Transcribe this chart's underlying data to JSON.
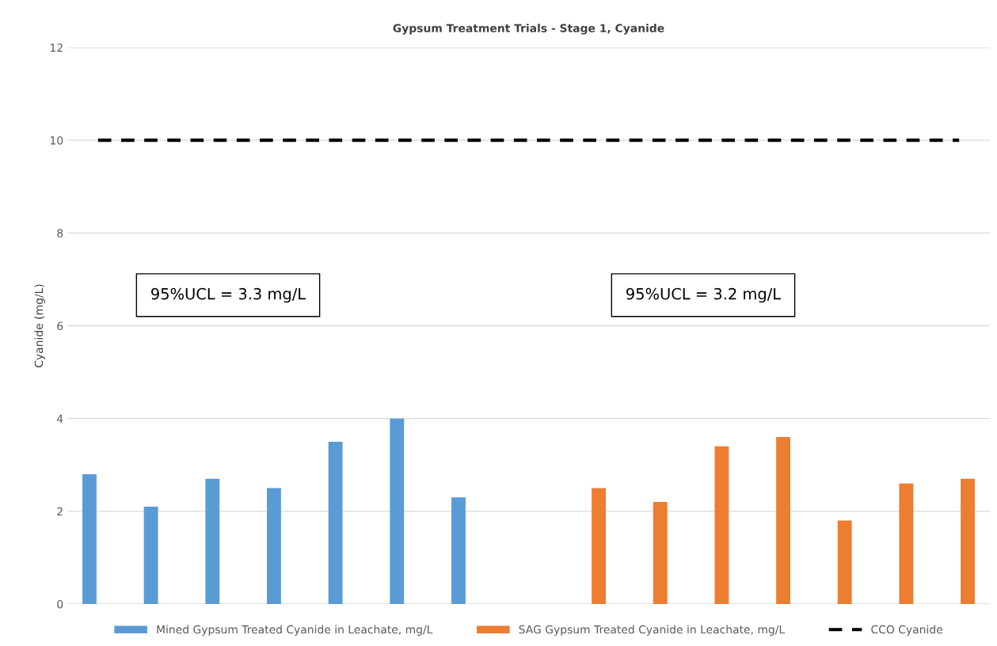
{
  "chart_data": {
    "type": "bar",
    "title": "Gypsum Treatment Trials - Stage 1, Cyanide",
    "ylabel": "Cyanide (mg/L)",
    "categories": [
      null,
      null,
      null,
      null,
      null,
      null,
      null,
      null,
      null,
      null,
      null,
      null,
      null,
      null,
      null
    ],
    "series": [
      {
        "name": "Mined Gypsum Treated Cyanide in Leachate, mg/L",
        "color": "#5b9bd5",
        "values": [
          2.8,
          2.1,
          2.7,
          2.5,
          3.5,
          4.0,
          2.3,
          null,
          null,
          null,
          null,
          null,
          null,
          null,
          null
        ]
      },
      {
        "name": "SAG Gypsum Treated Cyanide in Leachate, mg/L",
        "color": "#ed7d31",
        "values": [
          null,
          null,
          null,
          null,
          null,
          null,
          null,
          null,
          2.5,
          2.2,
          3.4,
          3.6,
          1.8,
          2.6,
          2.7
        ]
      },
      {
        "name": "CCO Cyanide",
        "type": "line",
        "color": "#000000",
        "line_style": "dashed",
        "marker": "none",
        "values": [
          10,
          10,
          10,
          10,
          10,
          10,
          10,
          10,
          10,
          10,
          10,
          10,
          10,
          10,
          10
        ]
      }
    ],
    "ylim": [
      0,
      12
    ],
    "yticks": [
      0,
      2,
      4,
      6,
      8,
      10,
      12
    ],
    "grid": "y",
    "legend": "bottom",
    "annotations": [
      "95%UCL = 3.3 mg/L",
      "95%UCL = 3.2 mg/L"
    ]
  }
}
